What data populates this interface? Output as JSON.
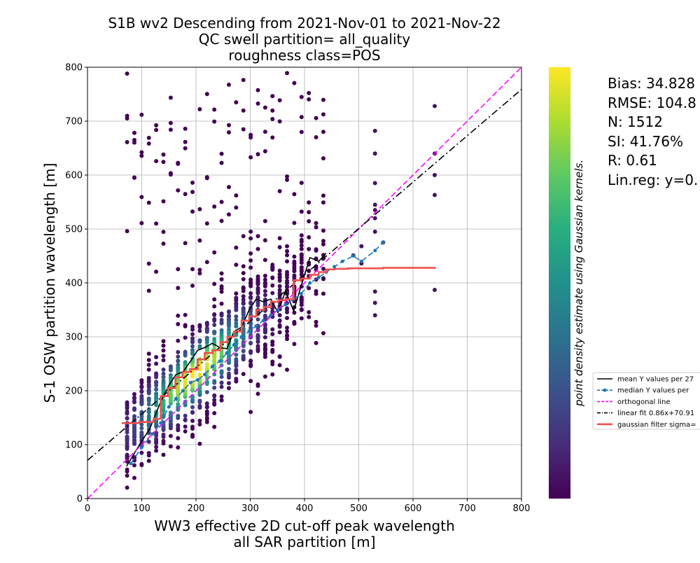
{
  "chart_data": {
    "type": "scatter",
    "title": "S1B wv2 Descending from 2021-Nov-01 to 2021-Nov-22\nQC swell partition= all_quality\nroughness class=POS",
    "xlabel": "WW3 effective 2D cut-off peak wavelength\nall SAR partition [m]",
    "ylabel": "S-1 OSW partition wavelength [m]",
    "colorbar_label": "point density estimate using Gaussian kernels.",
    "colormap": "viridis",
    "xlim": [
      0,
      800
    ],
    "ylim": [
      0,
      800
    ],
    "xticks": [
      0,
      100,
      200,
      300,
      400,
      500,
      600,
      700,
      800
    ],
    "yticks": [
      0,
      100,
      200,
      300,
      400,
      500,
      600,
      700,
      800
    ],
    "grid": true,
    "legend_position": "right-middle",
    "stats": [
      "Bias: 34.828",
      "RMSE: 104.8",
      "N: 1512",
      "SI: 41.76%",
      "R: 0.61",
      "Lin.reg: y=0."
    ],
    "series": [
      {
        "name": "mean Y values per 27",
        "kind": "line",
        "color": "#000000",
        "style": "solid",
        "x": [
          72,
          96,
          115,
          135,
          150,
          163,
          176,
          190,
          203,
          216,
          230,
          244,
          257,
          270,
          284,
          298,
          311,
          324,
          338,
          351,
          365,
          380,
          394,
          410,
          426,
          440
        ],
        "y": [
          60,
          100,
          130,
          180,
          210,
          230,
          235,
          255,
          275,
          280,
          288,
          280,
          278,
          310,
          318,
          350,
          370,
          365,
          370,
          345,
          385,
          348,
          395,
          447,
          440,
          455
        ]
      },
      {
        "name": "median Y values per",
        "kind": "line-marker",
        "color": "#1f77b4",
        "style": "dashed",
        "x": [
          80,
          100,
          120,
          135,
          150,
          163,
          176,
          190,
          203,
          216,
          230,
          244,
          257,
          270,
          284,
          298,
          311,
          324,
          338,
          351,
          365,
          380,
          394,
          410,
          426,
          440,
          455,
          470,
          490,
          505,
          530,
          545
        ],
        "y": [
          65,
          95,
          120,
          140,
          170,
          185,
          200,
          215,
          220,
          230,
          245,
          255,
          270,
          285,
          300,
          310,
          320,
          330,
          340,
          350,
          360,
          370,
          380,
          400,
          410,
          420,
          430,
          440,
          450,
          440,
          460,
          475
        ]
      },
      {
        "name": "orthogonal line",
        "kind": "line",
        "color": "#ff00ff",
        "style": "dashed",
        "x": [
          0,
          800
        ],
        "y": [
          0,
          800
        ]
      },
      {
        "name": "linear fit 0.86x+70.91",
        "kind": "line",
        "color": "#000000",
        "style": "dashdot",
        "x": [
          0,
          800
        ],
        "y": [
          70.91,
          758.91
        ]
      },
      {
        "name": "gaussian filter sigma=",
        "kind": "step",
        "color": "#f0504b",
        "style": "solid",
        "x": [
          63,
          95,
          122,
          135,
          148,
          162,
          175,
          189,
          203,
          216,
          230,
          245,
          258,
          270,
          284,
          298,
          311,
          325,
          338,
          352,
          365,
          380,
          394,
          410,
          426,
          440,
          455,
          480,
          530,
          545,
          642
        ],
        "y": [
          140,
          142,
          148,
          190,
          205,
          225,
          235,
          240,
          258,
          270,
          275,
          290,
          300,
          310,
          330,
          338,
          350,
          355,
          365,
          368,
          370,
          405,
          408,
          415,
          420,
          425,
          426,
          427,
          427,
          428,
          428
        ]
      }
    ]
  }
}
